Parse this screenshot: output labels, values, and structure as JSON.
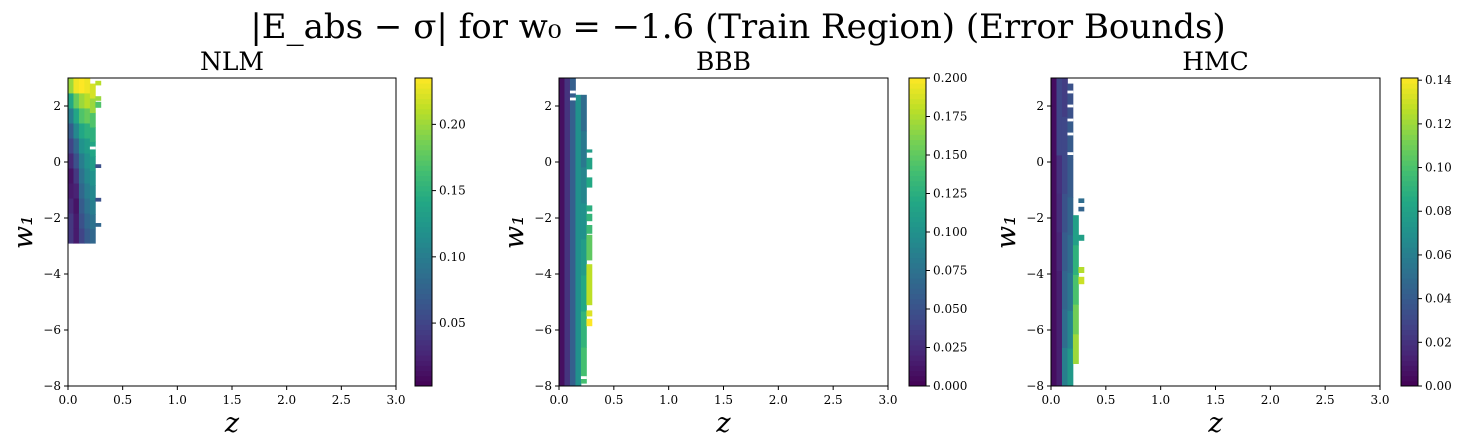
{
  "figure_title": "|E_abs − σ| for w₀ = −1.6 (Train Region) (Error Bounds)",
  "chart_data": [
    {
      "type": "heatmap",
      "title": "NLM",
      "xlabel": "z",
      "ylabel": "w₁",
      "xlim": [
        0.0,
        3.0
      ],
      "ylim": [
        -8,
        3
      ],
      "xticks": [
        "0.0",
        "0.5",
        "1.0",
        "1.5",
        "2.0",
        "2.5",
        "3.0"
      ],
      "yticks": [
        "−8",
        "−6",
        "−4",
        "−2",
        "0",
        "2"
      ],
      "colorbar": {
        "range": [
          0.0025,
          0.235
        ],
        "ticks": [
          "0.05",
          "0.10",
          "0.15",
          "0.20"
        ],
        "tick_values": [
          0.05,
          0.1,
          0.15,
          0.2
        ]
      },
      "colormap": "viridis",
      "column_width": 0.05,
      "columns": [
        {
          "z": 0.0,
          "w_from": -2.9,
          "w_to": 3.0,
          "values": [
            0.04,
            0.04,
            0.03,
            0.02,
            0.015,
            0.03,
            0.05,
            0.07,
            0.1,
            0.14,
            0.2
          ]
        },
        {
          "z": 0.05,
          "w_from": -2.9,
          "w_to": 3.0,
          "values": [
            0.02,
            0.02,
            0.015,
            0.025,
            0.04,
            0.06,
            0.08,
            0.11,
            0.14,
            0.18,
            0.23
          ]
        },
        {
          "z": 0.1,
          "w_from": -2.9,
          "w_to": 3.0,
          "values": [
            0.05,
            0.06,
            0.07,
            0.08,
            0.09,
            0.1,
            0.12,
            0.14,
            0.17,
            0.2,
            0.235
          ]
        },
        {
          "z": 0.15,
          "w_from": -2.9,
          "w_to": 3.0,
          "values": [
            0.07,
            0.08,
            0.09,
            0.1,
            0.11,
            0.12,
            0.13,
            0.15,
            0.18,
            0.21,
            0.23
          ]
        },
        {
          "z": 0.2,
          "w_from": -2.9,
          "w_to": 2.8,
          "values": [
            0.08,
            0.09,
            0.1,
            0.11,
            0.12,
            0.13,
            0.14,
            0.15,
            0.17,
            0.2,
            0.22
          ]
        },
        {
          "z": 0.25,
          "w_from": 2.75,
          "w_to": 2.9,
          "values": [
            0.21
          ]
        },
        {
          "z": 0.25,
          "w_from": 2.2,
          "w_to": 2.35,
          "values": [
            0.2
          ]
        },
        {
          "z": 0.25,
          "w_from": 1.95,
          "w_to": 2.15,
          "values": [
            0.17
          ]
        },
        {
          "z": 0.25,
          "w_from": -0.2,
          "w_to": -0.08,
          "values": [
            0.06
          ]
        },
        {
          "z": 0.25,
          "w_from": -1.4,
          "w_to": -1.28,
          "values": [
            0.06
          ]
        },
        {
          "z": 0.25,
          "w_from": -2.3,
          "w_to": -2.18,
          "values": [
            0.08
          ]
        }
      ],
      "gaps": [
        {
          "z": 0.2,
          "w_from": 0.45,
          "w_to": 0.55
        }
      ]
    },
    {
      "type": "heatmap",
      "title": "BBB",
      "xlabel": "z",
      "ylabel": "w₁",
      "xlim": [
        0.0,
        3.0
      ],
      "ylim": [
        -8,
        3
      ],
      "xticks": [
        "0.0",
        "0.5",
        "1.0",
        "1.5",
        "2.0",
        "2.5",
        "3.0"
      ],
      "yticks": [
        "−8",
        "−6",
        "−4",
        "−2",
        "0",
        "2"
      ],
      "colorbar": {
        "range": [
          0.0,
          0.2
        ],
        "ticks": [
          "0.000",
          "0.025",
          "0.050",
          "0.075",
          "0.100",
          "0.125",
          "0.150",
          "0.175",
          "0.200"
        ],
        "tick_values": [
          0.0,
          0.025,
          0.05,
          0.075,
          0.1,
          0.125,
          0.15,
          0.175,
          0.2
        ]
      },
      "colormap": "viridis",
      "column_width": 0.05,
      "columns": [
        {
          "z": 0.0,
          "w_from": -8.0,
          "w_to": 3.0,
          "values": [
            0.008
          ]
        },
        {
          "z": 0.05,
          "w_from": -8.0,
          "w_to": 3.0,
          "values": [
            0.03
          ]
        },
        {
          "z": 0.1,
          "w_from": -8.0,
          "w_to": 3.0,
          "values": [
            0.06
          ]
        },
        {
          "z": 0.15,
          "w_from": -8.0,
          "w_to": 2.4,
          "values": [
            0.1
          ]
        },
        {
          "z": 0.2,
          "w_from": -7.9,
          "w_to": 2.4,
          "values": [
            0.14,
            0.13,
            0.12,
            0.11,
            0.1,
            0.09,
            0.08,
            0.07
          ]
        },
        {
          "z": 0.25,
          "w_from": 0.35,
          "w_to": 0.45,
          "values": [
            0.11
          ]
        },
        {
          "z": 0.25,
          "w_from": -0.25,
          "w_to": 0.15,
          "values": [
            0.115
          ]
        },
        {
          "z": 0.25,
          "w_from": -0.9,
          "w_to": -0.55,
          "values": [
            0.12
          ]
        },
        {
          "z": 0.25,
          "w_from": -1.75,
          "w_to": -1.55,
          "values": [
            0.125
          ]
        },
        {
          "z": 0.25,
          "w_from": -2.1,
          "w_to": -1.85,
          "values": [
            0.13
          ]
        },
        {
          "z": 0.25,
          "w_from": -2.55,
          "w_to": -2.25,
          "values": [
            0.135
          ]
        },
        {
          "z": 0.25,
          "w_from": -3.5,
          "w_to": -2.6,
          "values": [
            0.15
          ]
        },
        {
          "z": 0.25,
          "w_from": -5.1,
          "w_to": -3.65,
          "values": [
            0.18
          ]
        },
        {
          "z": 0.25,
          "w_from": -5.5,
          "w_to": -5.3,
          "values": [
            0.19
          ]
        },
        {
          "z": 0.25,
          "w_from": -5.85,
          "w_to": -5.6,
          "values": [
            0.2
          ]
        }
      ],
      "gaps": [
        {
          "z": 0.1,
          "w_from": 2.45,
          "w_to": 2.55
        },
        {
          "z": 0.1,
          "w_from": 2.2,
          "w_to": 2.3
        },
        {
          "z": 0.2,
          "w_from": -7.75,
          "w_to": -7.65
        }
      ]
    },
    {
      "type": "heatmap",
      "title": "HMC",
      "xlabel": "z",
      "ylabel": "w₁",
      "xlim": [
        0.0,
        3.0
      ],
      "ylim": [
        -8,
        3
      ],
      "xticks": [
        "0.0",
        "0.5",
        "1.0",
        "1.5",
        "2.0",
        "2.5",
        "3.0"
      ],
      "yticks": [
        "−8",
        "−6",
        "−4",
        "−2",
        "0",
        "2"
      ],
      "colorbar": {
        "range": [
          0.0,
          0.141
        ],
        "ticks": [
          "0.00",
          "0.02",
          "0.04",
          "0.06",
          "0.08",
          "0.10",
          "0.12",
          "0.14"
        ],
        "tick_values": [
          0.0,
          0.02,
          0.04,
          0.06,
          0.08,
          0.1,
          0.12,
          0.14
        ]
      },
      "colormap": "viridis",
      "column_width": 0.05,
      "columns": [
        {
          "z": 0.0,
          "w_from": -8.0,
          "w_to": 3.0,
          "values": [
            0.005
          ]
        },
        {
          "z": 0.05,
          "w_from": -8.0,
          "w_to": 3.0,
          "values": [
            0.012,
            0.012,
            0.012,
            0.015,
            0.018,
            0.02,
            0.03,
            0.03
          ]
        },
        {
          "z": 0.1,
          "w_from": -8.0,
          "w_to": 3.0,
          "values": [
            0.06,
            0.05,
            0.045,
            0.04,
            0.035,
            0.03,
            0.03,
            0.025
          ]
        },
        {
          "z": 0.15,
          "w_from": -8.0,
          "w_to": 2.8,
          "values": [
            0.075,
            0.065,
            0.055,
            0.05,
            0.045,
            0.04,
            0.04,
            0.035
          ]
        },
        {
          "z": 0.2,
          "w_from": -7.2,
          "w_to": -1.9,
          "values": [
            0.12,
            0.11,
            0.1,
            0.09,
            0.08
          ]
        },
        {
          "z": 0.25,
          "w_from": -1.45,
          "w_to": -1.3,
          "values": [
            0.05
          ]
        },
        {
          "z": 0.25,
          "w_from": -1.75,
          "w_to": -1.6,
          "values": [
            0.045
          ]
        },
        {
          "z": 0.25,
          "w_from": -2.8,
          "w_to": -2.6,
          "values": [
            0.08
          ]
        },
        {
          "z": 0.25,
          "w_from": -3.95,
          "w_to": -3.75,
          "values": [
            0.125
          ]
        },
        {
          "z": 0.25,
          "w_from": -4.35,
          "w_to": -4.1,
          "values": [
            0.13
          ]
        }
      ],
      "gaps": [
        {
          "z": 0.15,
          "w_from": 2.45,
          "w_to": 2.55
        },
        {
          "z": 0.15,
          "w_from": 1.95,
          "w_to": 2.05
        },
        {
          "z": 0.15,
          "w_from": 1.45,
          "w_to": 1.55
        },
        {
          "z": 0.15,
          "w_from": 0.95,
          "w_to": 1.05
        },
        {
          "z": 0.15,
          "w_from": 0.25,
          "w_to": 0.35
        }
      ]
    }
  ]
}
